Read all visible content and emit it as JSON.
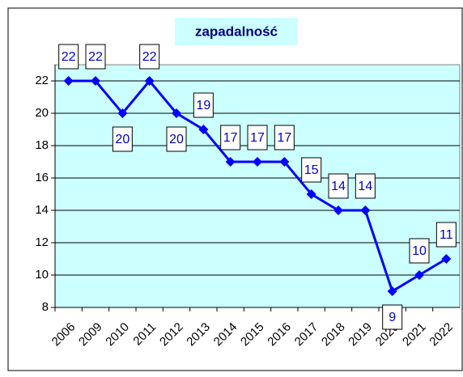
{
  "chart_data": {
    "type": "line",
    "title": "zapadalność",
    "categories": [
      "2006",
      "2009",
      "2010",
      "2011",
      "2012",
      "2013",
      "2014",
      "2015",
      "2016",
      "2017",
      "2018",
      "2019",
      "2020",
      "2021",
      "2022"
    ],
    "series": [
      {
        "name": "zapadalność",
        "color": "#0000ff",
        "values": [
          22,
          22,
          20,
          22,
          20,
          19,
          17,
          17,
          17,
          15,
          14,
          14,
          9,
          10,
          11
        ]
      }
    ],
    "ylim": [
      8,
      23
    ],
    "yticks": [
      8,
      10,
      12,
      14,
      16,
      18,
      20,
      22
    ],
    "grid": true
  }
}
